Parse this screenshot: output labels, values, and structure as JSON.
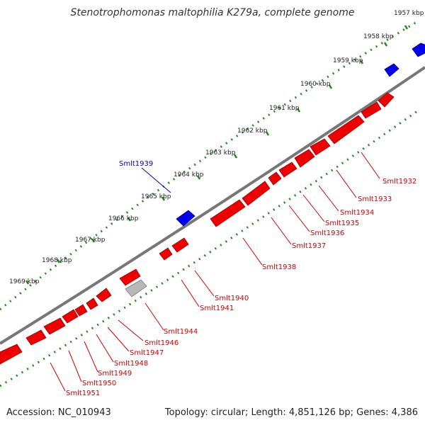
{
  "title": "Stenotrophomonas maltophilia K279a, complete genome",
  "footer": {
    "accession": "Accession: NC_010943",
    "topology": "Topology: circular; Length: 4,851,126 bp; Genes: 4,386"
  },
  "colors": {
    "forward": "#0000ee",
    "reverse": "#ee0000",
    "other": "#b8b8b8",
    "backbone": "#777777",
    "ticks": "#228822"
  },
  "ruler": [
    "1957 kbp",
    "1958 kbp",
    "1959 kbp",
    "1960 kbp",
    "1961 kbp",
    "1962 kbp",
    "1963 kbp",
    "1964 kbp",
    "1965 kbp",
    "1966 kbp",
    "1967 kbp",
    "1968 kbp",
    "1969 kbp"
  ],
  "forward_genes": [
    {
      "label": "Smlt1939"
    }
  ],
  "reverse_genes": [
    {
      "label": "Smlt1932"
    },
    {
      "label": "Smlt1933"
    },
    {
      "label": "Smlt1934"
    },
    {
      "label": "Smlt1935"
    },
    {
      "label": "Smlt1936"
    },
    {
      "label": "Smlt1937"
    },
    {
      "label": "Smlt1938"
    },
    {
      "label": "Smlt1940"
    },
    {
      "label": "Smlt1941"
    },
    {
      "label": "Smlt1944"
    },
    {
      "label": "Smlt1946"
    },
    {
      "label": "Smlt1947"
    },
    {
      "label": "Smlt1948"
    },
    {
      "label": "Smlt1949"
    },
    {
      "label": "Smlt1950"
    },
    {
      "label": "Smlt1951"
    }
  ]
}
